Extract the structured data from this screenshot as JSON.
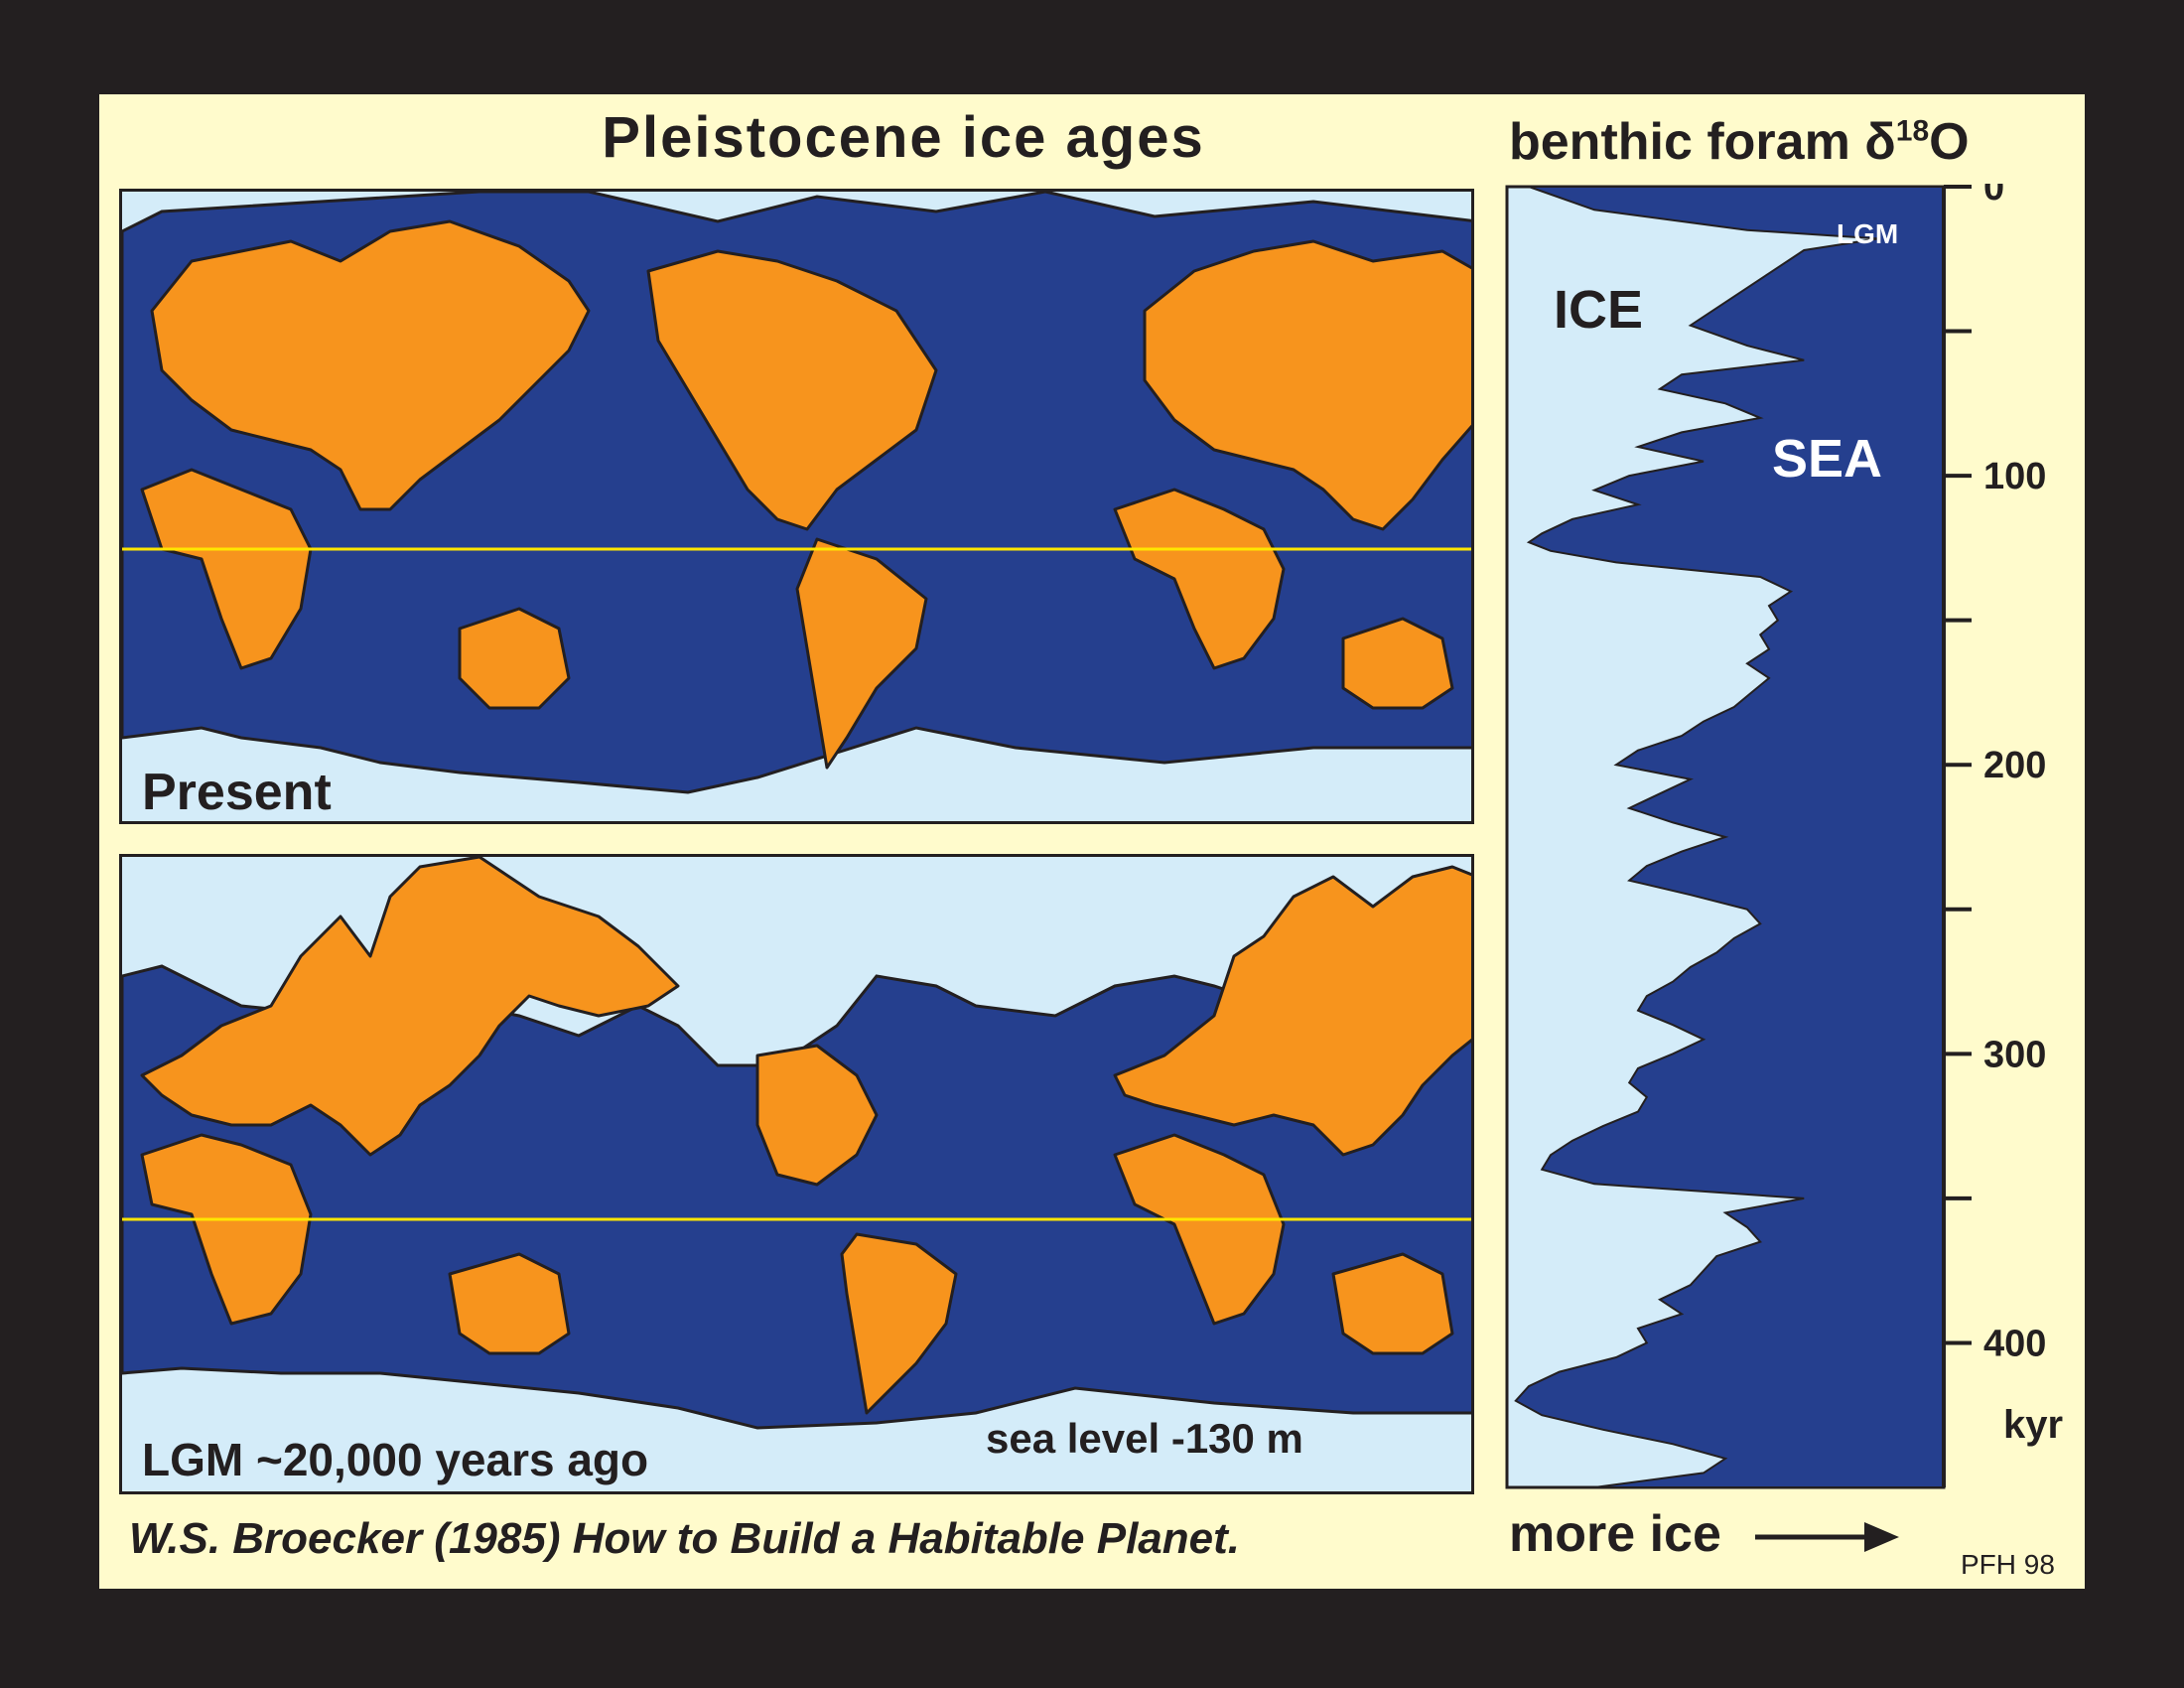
{
  "title": "Pleistocene ice ages",
  "chart_title_main": "benthic foram δ",
  "chart_title_sup": "18",
  "chart_title_end": "O",
  "maps": {
    "present_label": "Present",
    "lgm_label": "LGM ~20,000 years ago",
    "sea_level_label": "sea level  -130 m"
  },
  "citation": "W.S. Broecker (1985) How to Build a Habitable Planet.",
  "more_ice_label": "more ice",
  "credit": "PFH 98",
  "colors": {
    "land": "#f7941d",
    "ocean": "#253f8e",
    "ice": "#d4ecf9",
    "equator": "#ffe600",
    "background": "#fffbcc"
  },
  "chart_data": {
    "type": "area",
    "title": "benthic foram δ18O",
    "xlabel": "more ice",
    "ylabel": "kyr",
    "ylim": [
      0,
      450
    ],
    "yticks": [
      0,
      50,
      100,
      150,
      200,
      250,
      300,
      350,
      400
    ],
    "ytick_labels": [
      "0",
      "",
      "100",
      "",
      "200",
      "",
      "300",
      "",
      "400"
    ],
    "region_labels": {
      "ice": "ICE",
      "sea": "SEA",
      "lgm": "LGM"
    },
    "series": [
      {
        "age_kyr": [
          0,
          8,
          15,
          18,
          22,
          30,
          40,
          48,
          55,
          60,
          65,
          70,
          75,
          80,
          85,
          90,
          95,
          100,
          105,
          110,
          115,
          120,
          123,
          126,
          130,
          135,
          140,
          145,
          150,
          155,
          160,
          165,
          170,
          175,
          180,
          185,
          190,
          195,
          200,
          205,
          210,
          215,
          220,
          225,
          230,
          235,
          240,
          245,
          250,
          255,
          260,
          265,
          270,
          275,
          280,
          285,
          290,
          295,
          300,
          305,
          310,
          315,
          320,
          325,
          330,
          335,
          340,
          345,
          350,
          355,
          360,
          365,
          370,
          375,
          380,
          385,
          390,
          395,
          400,
          405,
          410,
          415,
          420,
          425,
          430,
          435,
          440,
          445,
          450
        ],
        "d18o_relative": [
          0.05,
          0.2,
          0.55,
          0.85,
          0.68,
          0.6,
          0.5,
          0.42,
          0.55,
          0.68,
          0.4,
          0.35,
          0.5,
          0.58,
          0.4,
          0.3,
          0.45,
          0.28,
          0.2,
          0.3,
          0.15,
          0.08,
          0.05,
          0.1,
          0.25,
          0.58,
          0.65,
          0.6,
          0.62,
          0.58,
          0.6,
          0.55,
          0.6,
          0.56,
          0.52,
          0.45,
          0.4,
          0.3,
          0.25,
          0.42,
          0.35,
          0.28,
          0.38,
          0.5,
          0.4,
          0.32,
          0.28,
          0.42,
          0.55,
          0.58,
          0.52,
          0.48,
          0.42,
          0.38,
          0.32,
          0.3,
          0.38,
          0.45,
          0.38,
          0.3,
          0.28,
          0.32,
          0.3,
          0.22,
          0.15,
          0.1,
          0.08,
          0.2,
          0.68,
          0.5,
          0.55,
          0.58,
          0.48,
          0.45,
          0.42,
          0.35,
          0.4,
          0.3,
          0.32,
          0.25,
          0.12,
          0.05,
          0.02,
          0.08,
          0.22,
          0.38,
          0.5,
          0.45,
          0.2
        ]
      }
    ]
  }
}
